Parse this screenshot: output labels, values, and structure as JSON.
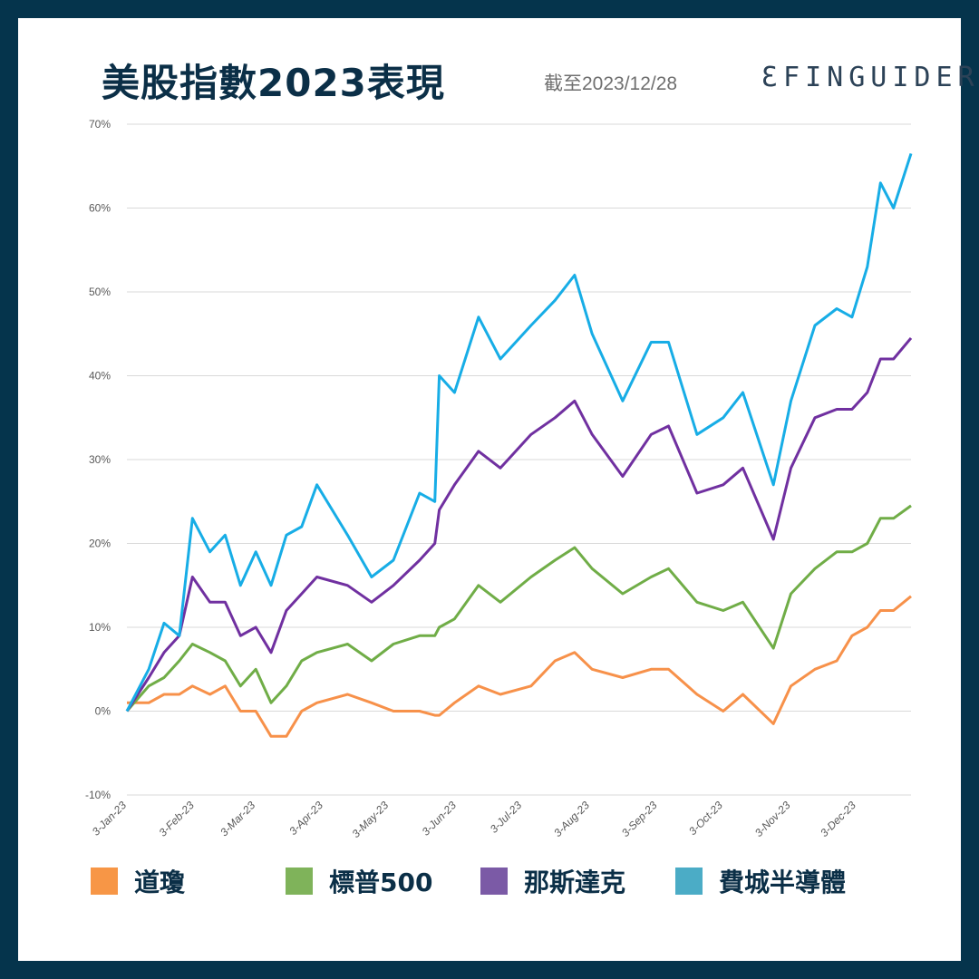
{
  "title": "美股指數2023表現",
  "as_of": "截至2023/12/28",
  "logo_text": "FINGUIDER",
  "colors": {
    "border": "#05344c",
    "title": "#0b2f47"
  },
  "chart_data": {
    "type": "line",
    "title": "美股指數2023表現",
    "xlabel": "",
    "ylabel": "",
    "ylim": [
      -10,
      70
    ],
    "yticks": [
      -10,
      0,
      10,
      20,
      30,
      40,
      50,
      60,
      70
    ],
    "ytick_labels": [
      "-10%",
      "0%",
      "10%",
      "20%",
      "30%",
      "40%",
      "50%",
      "60%",
      "70%"
    ],
    "xlim": [
      "2023-01-03",
      "2023-12-28"
    ],
    "xticks": [
      "2023-01-03",
      "2023-02-03",
      "2023-03-03",
      "2023-04-03",
      "2023-05-03",
      "2023-06-03",
      "2023-07-03",
      "2023-08-03",
      "2023-09-03",
      "2023-10-03",
      "2023-11-03",
      "2023-12-03"
    ],
    "xtick_labels": [
      "3-Jan-23",
      "3-Feb-23",
      "3-Mar-23",
      "3-Apr-23",
      "3-May-23",
      "3-Jun-23",
      "3-Jul-23",
      "3-Aug-23",
      "3-Sep-23",
      "3-Oct-23",
      "3-Nov-23",
      "3-Dec-23"
    ],
    "grid": true,
    "legend_placement": "bottom",
    "x": [
      "2023-01-03",
      "2023-01-13",
      "2023-01-20",
      "2023-01-27",
      "2023-02-02",
      "2023-02-10",
      "2023-02-17",
      "2023-02-24",
      "2023-03-03",
      "2023-03-10",
      "2023-03-17",
      "2023-03-24",
      "2023-03-31",
      "2023-04-14",
      "2023-04-25",
      "2023-05-05",
      "2023-05-17",
      "2023-05-24",
      "2023-05-26",
      "2023-06-02",
      "2023-06-13",
      "2023-06-23",
      "2023-07-07",
      "2023-07-18",
      "2023-07-27",
      "2023-08-04",
      "2023-08-18",
      "2023-08-31",
      "2023-09-08",
      "2023-09-21",
      "2023-10-03",
      "2023-10-12",
      "2023-10-26",
      "2023-11-03",
      "2023-11-14",
      "2023-11-24",
      "2023-12-01",
      "2023-12-08",
      "2023-12-14",
      "2023-12-20",
      "2023-12-28"
    ],
    "series": [
      {
        "name": "道瓊",
        "color": "#f7914a",
        "legend_color": "#f79646",
        "values": [
          1,
          1,
          2,
          2,
          3,
          2,
          3,
          0,
          0,
          -3,
          -3,
          0,
          1,
          2,
          1,
          0,
          0,
          -0.5,
          -0.5,
          1,
          3,
          2,
          3,
          6,
          7,
          5,
          4,
          5,
          5,
          2,
          0,
          2,
          -1.5,
          3,
          5,
          6,
          9,
          10,
          12,
          12,
          13.7
        ]
      },
      {
        "name": "標普500",
        "color": "#70ad47",
        "legend_color": "#7fb35a",
        "values": [
          0,
          3,
          4,
          6,
          8,
          7,
          6,
          3,
          5,
          1,
          3,
          6,
          7,
          8,
          6,
          8,
          9,
          9,
          10,
          11,
          15,
          13,
          16,
          18,
          19.5,
          17,
          14,
          16,
          17,
          13,
          12,
          13,
          7.5,
          14,
          17,
          19,
          19,
          20,
          23,
          23,
          24.5
        ]
      },
      {
        "name": "那斯達克",
        "color": "#7030a0",
        "legend_color": "#7b5aa6",
        "values": [
          0,
          4,
          7,
          9,
          16,
          13,
          13,
          9,
          10,
          7,
          12,
          14,
          16,
          15,
          13,
          15,
          18,
          20,
          24,
          27,
          31,
          29,
          33,
          35,
          37,
          33,
          28,
          33,
          34,
          26,
          27,
          29,
          20.5,
          29,
          35,
          36,
          36,
          38,
          42,
          42,
          44.5
        ]
      },
      {
        "name": "費城半導體",
        "color": "#17ade6",
        "legend_color": "#4bacc6",
        "values": [
          0,
          5,
          10.5,
          9,
          23,
          19,
          21,
          15,
          19,
          15,
          21,
          22,
          27,
          21,
          16,
          18,
          26,
          25,
          40,
          38,
          47,
          42,
          46,
          49,
          52,
          45,
          37,
          44,
          44,
          33,
          35,
          38,
          27,
          37,
          46,
          48,
          47,
          53,
          63,
          60,
          66.5
        ]
      }
    ]
  }
}
